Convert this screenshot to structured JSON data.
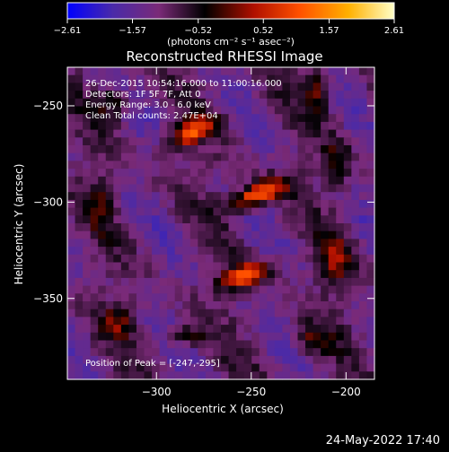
{
  "chart_data": {
    "type": "heatmap",
    "title": "Reconstructed RHESSI Image",
    "xlabel": "Heliocentric X (arcsec)",
    "ylabel": "Heliocentric Y (arcsec)",
    "xlim": [
      -347,
      -185
    ],
    "ylim": [
      -392,
      -230
    ],
    "xticks": [
      -300,
      -250,
      -200
    ],
    "yticks": [
      -250,
      -300,
      -350
    ],
    "xtick_labels": [
      "−300",
      "−250",
      "−200"
    ],
    "ytick_labels": [
      "−250",
      "−300",
      "−350"
    ],
    "colorbar": {
      "range": [
        -2.61,
        2.61
      ],
      "ticks": [
        -2.61,
        -1.57,
        -0.52,
        0.52,
        1.57,
        2.61
      ],
      "tick_labels": [
        "−2.61",
        "−1.57",
        "−0.52",
        "0.52",
        "1.57",
        "2.61"
      ],
      "unit_label": "(photons cm⁻² s⁻¹ asec⁻²)",
      "stops": [
        "#0000ff",
        "#4a2aa8",
        "#7a2a78",
        "#000000",
        "#b01000",
        "#ff5000",
        "#ffb000",
        "#ffffc8"
      ]
    },
    "annotations": [
      "26-Dec-2015 10:54:16.000 to 11:00:16.000",
      "Detectors: 1F 5F 7F, Att 0",
      "Energy Range: 3.0 - 6.0 keV",
      "Clean     Total counts: 2.47E+04"
    ],
    "peak_label": "Position of Peak = [-247,-295]",
    "peak": {
      "x": -247,
      "y": -295
    },
    "sources": [
      {
        "x": -282,
        "y": -264,
        "amp": 1.9,
        "sx": 10,
        "sy": 4,
        "angle": 28
      },
      {
        "x": -246,
        "y": -296,
        "amp": 2.6,
        "sx": 11,
        "sy": 4,
        "angle": 22
      },
      {
        "x": -253,
        "y": -338,
        "amp": 2.1,
        "sx": 10,
        "sy": 4,
        "angle": 18
      },
      {
        "x": -215,
        "y": -242,
        "amp": 1.1,
        "sx": 5,
        "sy": 8,
        "angle": 0
      },
      {
        "x": -205,
        "y": -280,
        "amp": 1.0,
        "sx": 5,
        "sy": 9,
        "angle": 0
      },
      {
        "x": -205,
        "y": -330,
        "amp": 1.1,
        "sx": 6,
        "sy": 10,
        "angle": 0
      },
      {
        "x": -323,
        "y": -248,
        "amp": 1.0,
        "sx": 6,
        "sy": 6,
        "angle": 0
      },
      {
        "x": -330,
        "y": -300,
        "amp": 0.8,
        "sx": 5,
        "sy": 10,
        "angle": 0
      },
      {
        "x": -320,
        "y": -362,
        "amp": 1.0,
        "sx": 6,
        "sy": 6,
        "angle": 0
      },
      {
        "x": -285,
        "y": -370,
        "amp": 0.9,
        "sx": 8,
        "sy": 4,
        "angle": 0
      },
      {
        "x": -218,
        "y": -372,
        "amp": 1.0,
        "sx": 6,
        "sy": 5,
        "angle": 0
      }
    ]
  },
  "footer_date": "24-May-2022 17:40"
}
